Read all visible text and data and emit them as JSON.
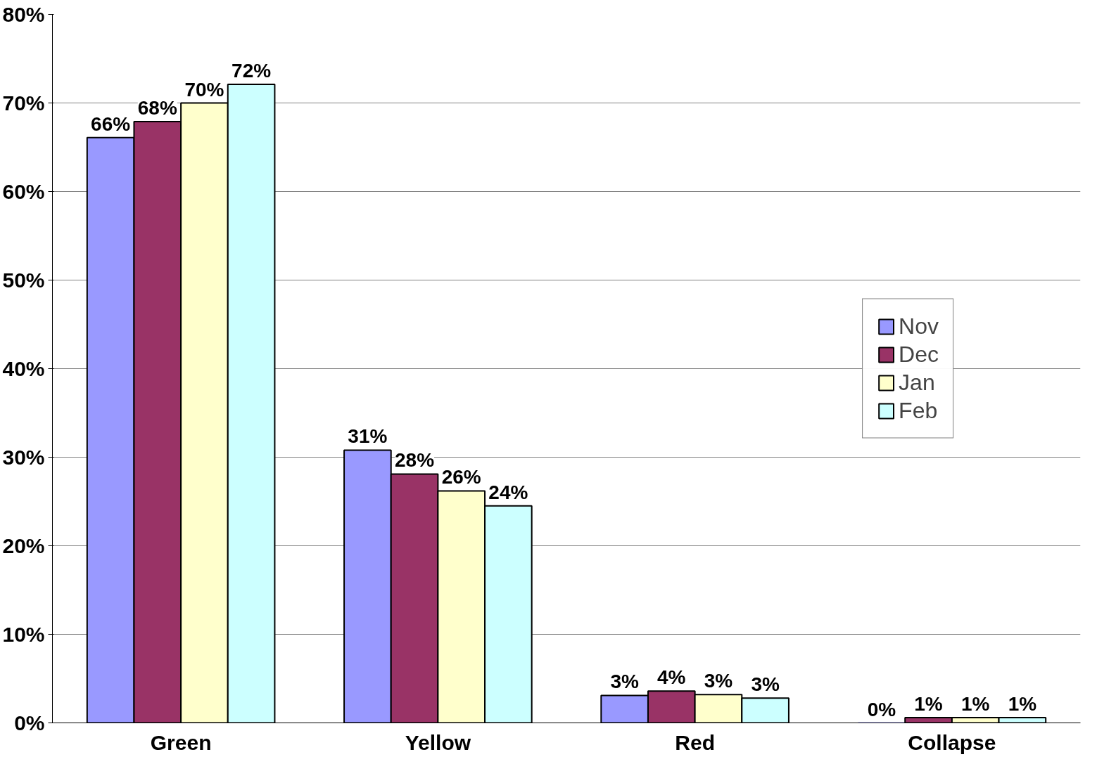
{
  "chart_data": {
    "type": "bar",
    "categories": [
      "Green",
      "Yellow",
      "Red",
      "Collapse"
    ],
    "series": [
      {
        "name": "Nov",
        "color": "#9999ff",
        "values": [
          66.1,
          30.8,
          3.1,
          0
        ],
        "value_labels": [
          "66%",
          "31%",
          "3%",
          "0%"
        ]
      },
      {
        "name": "Dec",
        "color": "#993366",
        "values": [
          67.9,
          28.1,
          3.6,
          0.6
        ],
        "value_labels": [
          "68%",
          "28%",
          "4%",
          "1%"
        ]
      },
      {
        "name": "Jan",
        "color": "#ffffcc",
        "values": [
          70.0,
          26.2,
          3.2,
          0.6
        ],
        "value_labels": [
          "70%",
          "26%",
          "3%",
          "1%"
        ]
      },
      {
        "name": "Feb",
        "color": "#ccffff",
        "values": [
          72.1,
          24.5,
          2.8,
          0.6
        ],
        "value_labels": [
          "72%",
          "24%",
          "3%",
          "1%"
        ]
      }
    ],
    "ylim": [
      0,
      80
    ],
    "yticks": [
      {
        "value": 0,
        "label": "0%"
      },
      {
        "value": 10,
        "label": "10%"
      },
      {
        "value": 20,
        "label": "20%"
      },
      {
        "value": 30,
        "label": "30%"
      },
      {
        "value": 40,
        "label": "40%"
      },
      {
        "value": 50,
        "label": "50%"
      },
      {
        "value": 60,
        "label": "60%"
      },
      {
        "value": 70,
        "label": "70%"
      },
      {
        "value": 80,
        "label": "80%"
      }
    ],
    "grid": "y",
    "legend": "right"
  }
}
